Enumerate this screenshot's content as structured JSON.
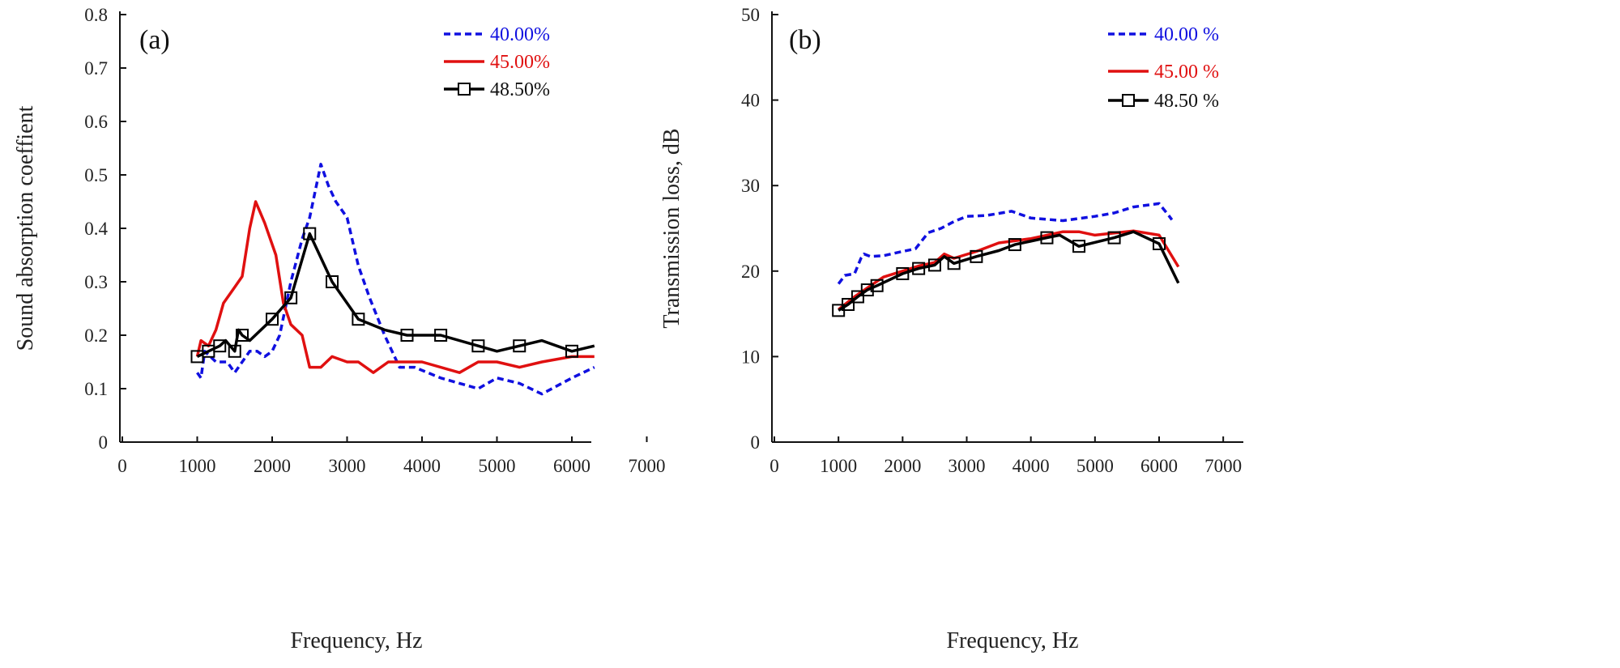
{
  "chart_data": [
    {
      "type": "line",
      "panel_label": "(a)",
      "xlabel": "Frequency, Hz",
      "ylabel": "Sound absorption coeffient",
      "xlim": [
        0,
        7000
      ],
      "ylim": [
        0,
        0.8
      ],
      "xticks": [
        "0",
        "1000",
        "2000",
        "3000",
        "4000",
        "5000",
        "6000",
        "7000"
      ],
      "yticks": [
        "0",
        "0.1",
        "0.2",
        "0.3",
        "0.4",
        "0.5",
        "0.6",
        "0.7",
        "0.8"
      ],
      "grid": false,
      "legend_position": "top-right",
      "series": [
        {
          "name": "40.00%",
          "color": "#1010e0",
          "style": "dashed",
          "marker": "none",
          "points": [
            [
              1000,
              0.13
            ],
            [
              1050,
              0.12
            ],
            [
              1100,
              0.17
            ],
            [
              1250,
              0.15
            ],
            [
              1400,
              0.15
            ],
            [
              1500,
              0.13
            ],
            [
              1600,
              0.15
            ],
            [
              1700,
              0.17
            ],
            [
              1800,
              0.17
            ],
            [
              1900,
              0.16
            ],
            [
              2000,
              0.17
            ],
            [
              2100,
              0.2
            ],
            [
              2250,
              0.3
            ],
            [
              2400,
              0.38
            ],
            [
              2500,
              0.42
            ],
            [
              2650,
              0.52
            ],
            [
              2750,
              0.48
            ],
            [
              2850,
              0.45
            ],
            [
              3000,
              0.42
            ],
            [
              3150,
              0.33
            ],
            [
              3300,
              0.27
            ],
            [
              3500,
              0.2
            ],
            [
              3700,
              0.14
            ],
            [
              3900,
              0.14
            ],
            [
              4250,
              0.12
            ],
            [
              4500,
              0.11
            ],
            [
              4750,
              0.1
            ],
            [
              5000,
              0.12
            ],
            [
              5300,
              0.11
            ],
            [
              5600,
              0.09
            ],
            [
              6000,
              0.12
            ],
            [
              6300,
              0.14
            ]
          ]
        },
        {
          "name": "45.00%",
          "color": "#e01010",
          "style": "solid",
          "marker": "none",
          "points": [
            [
              1000,
              0.16
            ],
            [
              1050,
              0.19
            ],
            [
              1150,
              0.18
            ],
            [
              1250,
              0.21
            ],
            [
              1350,
              0.26
            ],
            [
              1500,
              0.29
            ],
            [
              1600,
              0.31
            ],
            [
              1700,
              0.4
            ],
            [
              1780,
              0.45
            ],
            [
              1900,
              0.41
            ],
            [
              2050,
              0.35
            ],
            [
              2150,
              0.26
            ],
            [
              2250,
              0.22
            ],
            [
              2400,
              0.2
            ],
            [
              2500,
              0.14
            ],
            [
              2650,
              0.14
            ],
            [
              2800,
              0.16
            ],
            [
              3000,
              0.15
            ],
            [
              3150,
              0.15
            ],
            [
              3350,
              0.13
            ],
            [
              3550,
              0.15
            ],
            [
              4000,
              0.15
            ],
            [
              4500,
              0.13
            ],
            [
              4750,
              0.15
            ],
            [
              5000,
              0.15
            ],
            [
              5300,
              0.14
            ],
            [
              5600,
              0.15
            ],
            [
              6000,
              0.16
            ],
            [
              6300,
              0.16
            ]
          ]
        },
        {
          "name": "48.50%",
          "color": "#000000",
          "style": "solid",
          "marker": "square",
          "points": [
            [
              1000,
              0.16
            ],
            [
              1150,
              0.17
            ],
            [
              1300,
              0.18
            ],
            [
              1380,
              0.19
            ],
            [
              1500,
              0.17
            ],
            [
              1550,
              0.21
            ],
            [
              1600,
              0.2
            ],
            [
              1700,
              0.19
            ],
            [
              2000,
              0.23
            ],
            [
              2250,
              0.27
            ],
            [
              2500,
              0.39
            ],
            [
              2800,
              0.3
            ],
            [
              3150,
              0.23
            ],
            [
              3500,
              0.21
            ],
            [
              3800,
              0.2
            ],
            [
              4250,
              0.2
            ],
            [
              4750,
              0.18
            ],
            [
              5000,
              0.17
            ],
            [
              5300,
              0.18
            ],
            [
              5600,
              0.19
            ],
            [
              6000,
              0.17
            ],
            [
              6300,
              0.18
            ]
          ],
          "marker_points": [
            [
              1000,
              0.16
            ],
            [
              1150,
              0.17
            ],
            [
              1300,
              0.18
            ],
            [
              1500,
              0.17
            ],
            [
              1600,
              0.2
            ],
            [
              2000,
              0.23
            ],
            [
              2250,
              0.27
            ],
            [
              2500,
              0.39
            ],
            [
              2800,
              0.3
            ],
            [
              3150,
              0.23
            ],
            [
              3800,
              0.2
            ],
            [
              4250,
              0.2
            ],
            [
              4750,
              0.18
            ],
            [
              5300,
              0.18
            ],
            [
              6000,
              0.17
            ]
          ]
        }
      ]
    },
    {
      "type": "line",
      "panel_label": "(b)",
      "xlabel": "Frequency, Hz",
      "ylabel": "Transmission loss, dB",
      "xlim": [
        0,
        7000
      ],
      "ylim": [
        0,
        50
      ],
      "xticks": [
        "0",
        "1000",
        "2000",
        "3000",
        "4000",
        "5000",
        "6000",
        "7000"
      ],
      "yticks": [
        "0",
        "10",
        "20",
        "30",
        "40",
        "50"
      ],
      "grid": false,
      "legend_position": "top-right",
      "series": [
        {
          "name": "40.00 %",
          "color": "#1010e0",
          "style": "dashed",
          "marker": "none",
          "points": [
            [
              1000,
              18.5
            ],
            [
              1100,
              19.5
            ],
            [
              1250,
              19.7
            ],
            [
              1350,
              21.5
            ],
            [
              1400,
              22
            ],
            [
              1500,
              21.7
            ],
            [
              1700,
              21.8
            ],
            [
              2000,
              22.3
            ],
            [
              2200,
              22.6
            ],
            [
              2400,
              24.5
            ],
            [
              2600,
              25
            ],
            [
              2800,
              25.8
            ],
            [
              3000,
              26.4
            ],
            [
              3300,
              26.5
            ],
            [
              3700,
              27
            ],
            [
              4000,
              26.2
            ],
            [
              4500,
              25.9
            ],
            [
              5000,
              26.4
            ],
            [
              5300,
              26.8
            ],
            [
              5600,
              27.5
            ],
            [
              6000,
              27.9
            ],
            [
              6150,
              26.5
            ],
            [
              6200,
              26
            ]
          ]
        },
        {
          "name": "45.00 %",
          "color": "#e01010",
          "style": "solid",
          "marker": "none",
          "points": [
            [
              1000,
              15.5
            ],
            [
              1250,
              17
            ],
            [
              1500,
              18.3
            ],
            [
              1700,
              19.3
            ],
            [
              2000,
              20
            ],
            [
              2250,
              20.6
            ],
            [
              2500,
              21
            ],
            [
              2650,
              22
            ],
            [
              2800,
              21.5
            ],
            [
              3150,
              22.3
            ],
            [
              3500,
              23.3
            ],
            [
              4000,
              23.8
            ],
            [
              4500,
              24.6
            ],
            [
              4750,
              24.6
            ],
            [
              5000,
              24.2
            ],
            [
              5600,
              24.7
            ],
            [
              6000,
              24.2
            ],
            [
              6300,
              20.5
            ]
          ]
        },
        {
          "name": "48.50 %",
          "color": "#000000",
          "style": "solid",
          "marker": "square",
          "points": [
            [
              1000,
              15.4
            ],
            [
              1150,
              16.1
            ],
            [
              1300,
              17
            ],
            [
              1450,
              17.8
            ],
            [
              1600,
              18.3
            ],
            [
              2000,
              19.7
            ],
            [
              2250,
              20.3
            ],
            [
              2500,
              20.7
            ],
            [
              2650,
              21.7
            ],
            [
              2800,
              20.9
            ],
            [
              3150,
              21.7
            ],
            [
              3500,
              22.4
            ],
            [
              3750,
              23.1
            ],
            [
              4250,
              23.9
            ],
            [
              4450,
              24.2
            ],
            [
              4750,
              22.9
            ],
            [
              5300,
              23.9
            ],
            [
              5600,
              24.6
            ],
            [
              6000,
              23.2
            ],
            [
              6300,
              18.6
            ]
          ],
          "marker_points": [
            [
              1000,
              15.4
            ],
            [
              1150,
              16.1
            ],
            [
              1300,
              17
            ],
            [
              1450,
              17.8
            ],
            [
              1600,
              18.3
            ],
            [
              2000,
              19.7
            ],
            [
              2250,
              20.3
            ],
            [
              2500,
              20.7
            ],
            [
              2800,
              20.9
            ],
            [
              3150,
              21.7
            ],
            [
              3750,
              23.1
            ],
            [
              4250,
              23.9
            ],
            [
              4750,
              22.9
            ],
            [
              5300,
              23.9
            ],
            [
              6000,
              23.2
            ]
          ]
        }
      ]
    }
  ]
}
